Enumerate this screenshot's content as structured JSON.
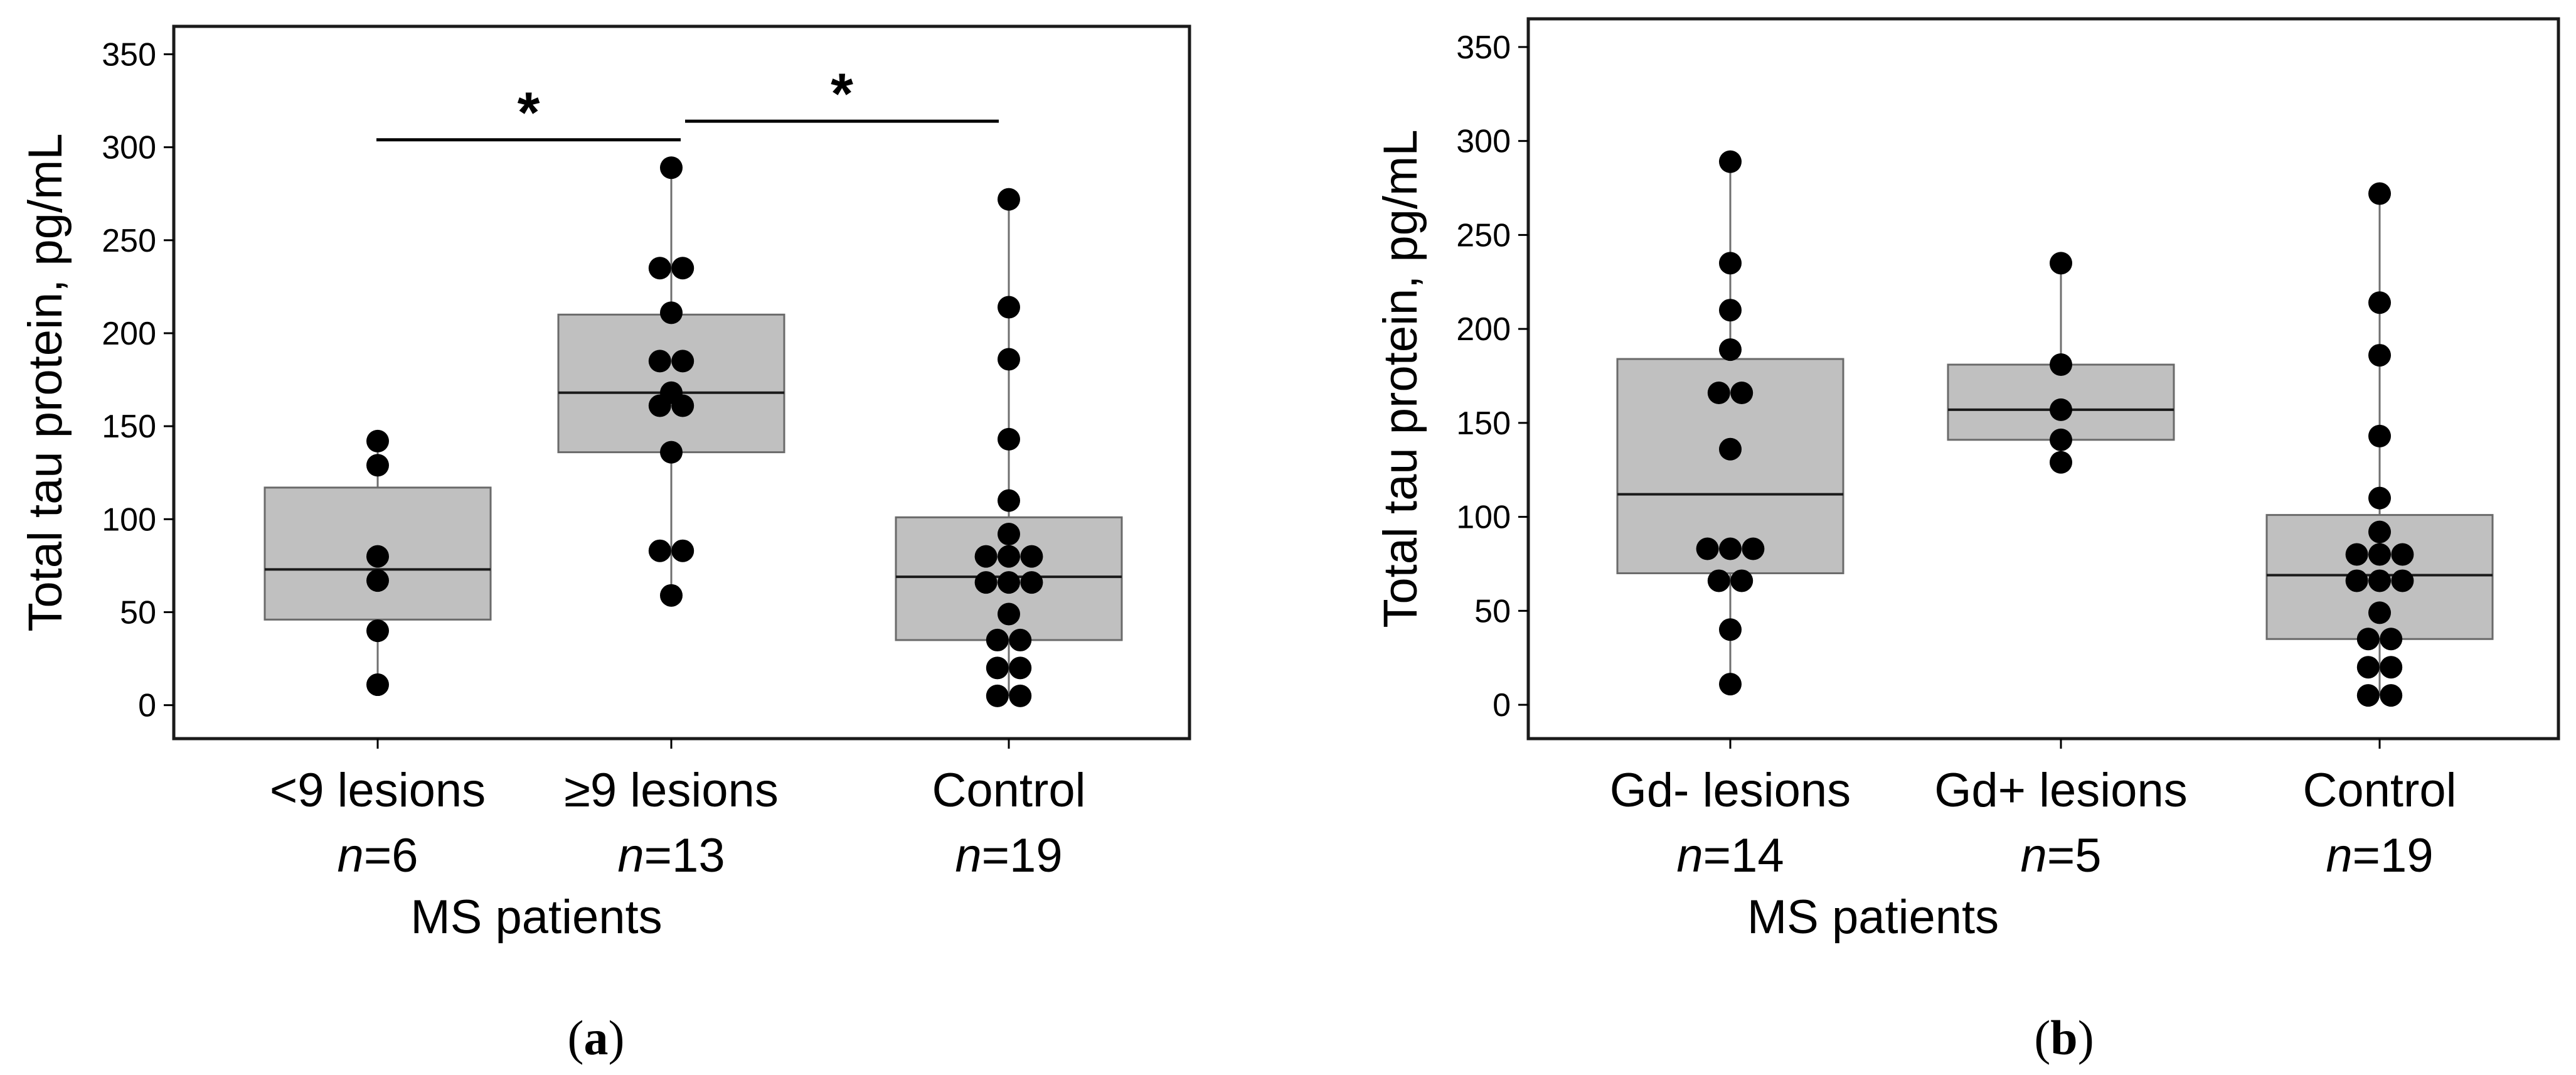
{
  "chart_data": [
    {
      "type": "box",
      "panel_label": "a",
      "ylabel": "Total tau protein, pg/mL",
      "xlabel": "MS patients",
      "ylim": [
        -18,
        365
      ],
      "yticks": [
        0,
        50,
        100,
        150,
        200,
        250,
        300,
        350
      ],
      "n_prefix": "n",
      "groups": [
        {
          "label": "<9 lesions",
          "n": "=6",
          "box": {
            "q1": 46,
            "median": 73,
            "q3": 117,
            "min": 11,
            "max": 142
          },
          "points": [
            142,
            129,
            80,
            67,
            40,
            11
          ]
        },
        {
          "label": "≥9 lesions",
          "n": "=13",
          "box": {
            "q1": 136,
            "median": 168,
            "q3": 210,
            "min": 59,
            "max": 289
          },
          "points": [
            289,
            235,
            235,
            211,
            185,
            185,
            168,
            161,
            161,
            136,
            83,
            83,
            59
          ]
        },
        {
          "label": "Control",
          "n": "=19",
          "box": {
            "q1": 35,
            "median": 69,
            "q3": 101,
            "min": 5,
            "max": 272
          },
          "points": [
            272,
            214,
            186,
            143,
            110,
            92,
            80,
            80,
            80,
            66,
            66,
            66,
            49,
            35,
            35,
            20,
            20,
            5,
            5
          ]
        }
      ],
      "significance": [
        {
          "from": 0,
          "to": 1,
          "y": 304,
          "label": "*"
        },
        {
          "from": 1,
          "to": 2,
          "y": 314,
          "label": "*"
        }
      ]
    },
    {
      "type": "box",
      "panel_label": "b",
      "ylabel": "Total tau protein, pg/mL",
      "xlabel": "MS patients",
      "ylim": [
        -18,
        365
      ],
      "yticks": [
        0,
        50,
        100,
        150,
        200,
        250,
        300,
        350
      ],
      "n_prefix": "n",
      "groups": [
        {
          "label": "Gd- lesions",
          "n": "=14",
          "box": {
            "q1": 70,
            "median": 112,
            "q3": 184,
            "min": 11,
            "max": 289
          },
          "points": [
            289,
            235,
            210,
            189,
            166,
            166,
            136,
            83,
            83,
            83,
            66,
            66,
            40,
            11
          ]
        },
        {
          "label": "Gd+ lesions",
          "n": "=5",
          "box": {
            "q1": 141,
            "median": 157,
            "q3": 181,
            "min": 129,
            "max": 235
          },
          "points": [
            235,
            181,
            157,
            141,
            129
          ]
        },
        {
          "label": "Control",
          "n": "=19",
          "box": {
            "q1": 35,
            "median": 69,
            "q3": 101,
            "min": 5,
            "max": 272
          },
          "points": [
            272,
            214,
            186,
            143,
            110,
            92,
            80,
            80,
            80,
            66,
            66,
            66,
            49,
            35,
            35,
            20,
            20,
            5,
            5
          ]
        }
      ],
      "significance": []
    }
  ]
}
